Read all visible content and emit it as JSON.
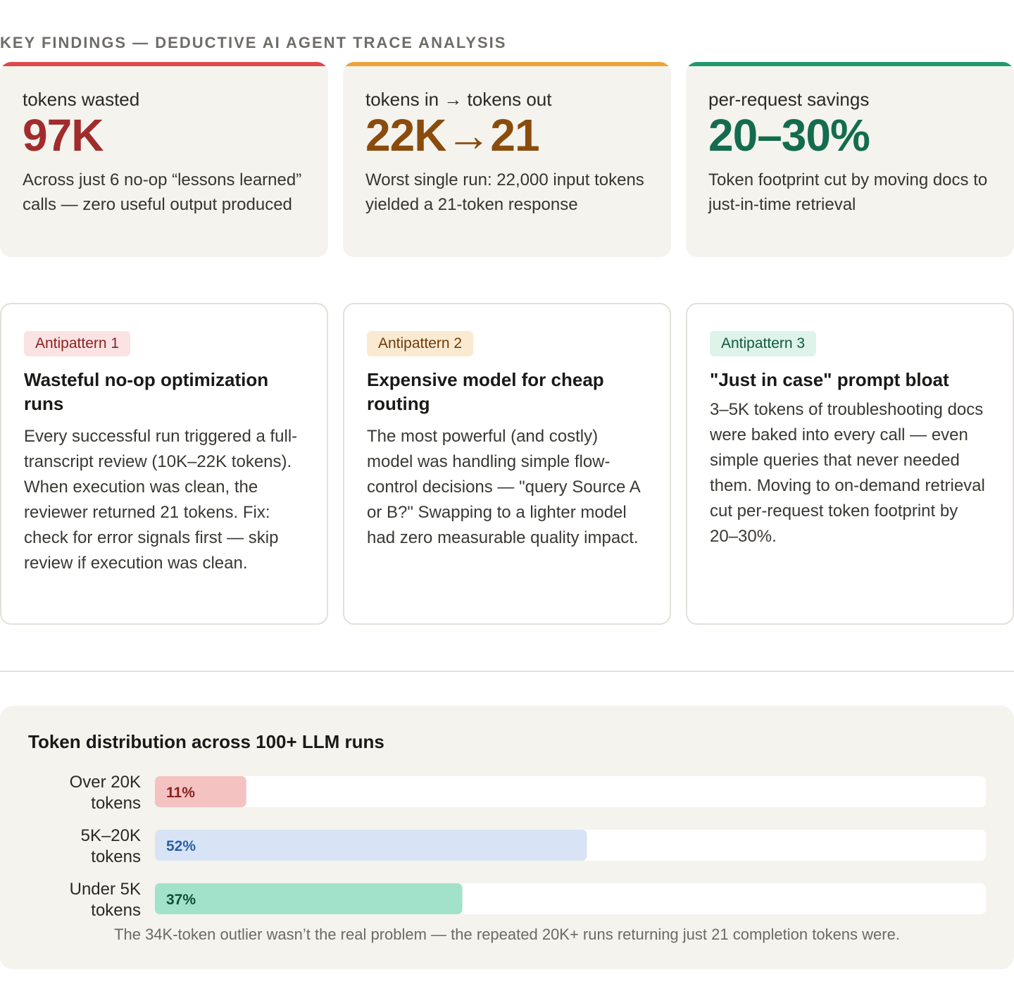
{
  "header": {
    "title": "KEY FINDINGS — DEDUCTIVE AI AGENT TRACE ANALYSIS"
  },
  "stats": [
    {
      "label": "tokens wasted",
      "value": "97K",
      "description": "Across just 6 no-op “lessons learned” calls — zero useful output produced",
      "color": "#e0474c"
    },
    {
      "label": "tokens in → tokens out",
      "value": "22K→21",
      "description": "Worst single run: 22,000 input tokens yielded a 21-token response",
      "color": "#eca33a"
    },
    {
      "label": "per-request savings",
      "value": "20–30%",
      "description": "Token footprint cut by moving docs to just-in-time retrieval",
      "color": "#1f9a6e"
    }
  ],
  "antipatterns": [
    {
      "badge": "Antipattern 1",
      "title": "Wasteful no-op optimization runs",
      "body": "Every successful run triggered a full-transcript review (10K–22K tokens). When execution was clean, the reviewer returned 21 tokens. Fix: check for error signals first — skip review if execution was clean."
    },
    {
      "badge": "Antipattern 2",
      "title": "Expensive model for cheap routing",
      "body": "The most powerful (and costly) model was handling simple flow-control decisions — \"query Source A or B?\" Swapping to a lighter model had zero measurable quality impact."
    },
    {
      "badge": "Antipattern 3",
      "title": "\"Just in case\" prompt bloat",
      "body": "3–5K tokens of troubleshooting docs were baked into every call — even simple queries that never needed them. Moving to on-demand retrieval cut per-request token footprint by 20–30%."
    }
  ],
  "chart_data": {
    "type": "bar",
    "orientation": "horizontal",
    "title": "Token distribution across 100+ LLM runs",
    "categories": [
      [
        "Over 20K",
        "tokens"
      ],
      [
        "5K–20K",
        "tokens"
      ],
      [
        "Under 5K",
        "tokens"
      ]
    ],
    "values": [
      11,
      52,
      37
    ],
    "value_labels": [
      "11%",
      "52%",
      "37%"
    ],
    "xlim": [
      0,
      100
    ],
    "bar_colors": [
      "#f5c2c2",
      "#d8e4f5",
      "#a2e2ca"
    ],
    "label_colors": [
      "#8d2020",
      "#2d5fa6",
      "#0f4f38"
    ],
    "track_color": "#ffffff",
    "note": "The 34K-token outlier wasn’t the real problem — the repeated 20K+ runs returning just 21 completion tokens were."
  }
}
